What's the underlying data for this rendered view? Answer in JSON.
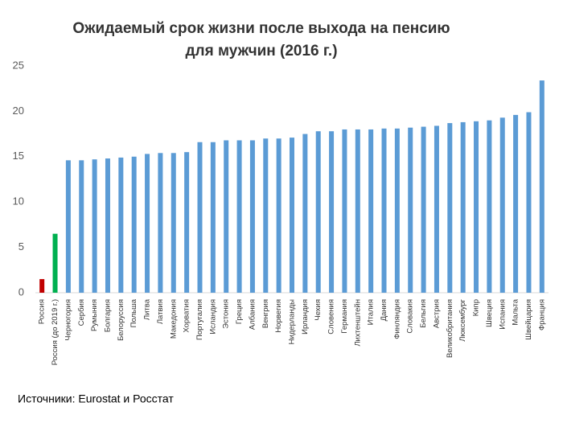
{
  "chart_data": {
    "type": "bar",
    "title": [
      "Ожидаемый срок жизни после выхода на пенсию",
      "для мужчин (2016 г.)"
    ],
    "source": "Источники: Eurostat и Росстат",
    "categories": [
      "Россия",
      "Россия (до 2019 г.)",
      "Черногория",
      "Сербия",
      "Румыния",
      "Болгария",
      "Белоруссия",
      "Польша",
      "Литва",
      "Латвия",
      "Македония",
      "Хорватия",
      "Португалия",
      "Исландия",
      "Эстония",
      "Греция",
      "Албания",
      "Венгрия",
      "Норвегия",
      "Нидерланды",
      "Ирландия",
      "Чехия",
      "Словения",
      "Германия",
      "Лихтенштейн",
      "Италия",
      "Дания",
      "Финляндия",
      "Словакия",
      "Бельгия",
      "Австрия",
      "Великобритания",
      "Люксембург",
      "Кипр",
      "Швеция",
      "Испания",
      "Мальта",
      "Швейцария",
      "Франция"
    ],
    "values": [
      1.5,
      6.5,
      14.6,
      14.6,
      14.7,
      14.8,
      14.9,
      15.0,
      15.3,
      15.4,
      15.4,
      15.5,
      16.6,
      16.6,
      16.8,
      16.8,
      16.8,
      17.0,
      17.0,
      17.1,
      17.5,
      17.8,
      17.8,
      18.0,
      18.0,
      18.0,
      18.1,
      18.1,
      18.2,
      18.3,
      18.4,
      18.7,
      18.8,
      18.9,
      19.0,
      19.3,
      19.6,
      19.9,
      23.4
    ],
    "colors": [
      "#c00000",
      "#00b050",
      "#5b9bd5",
      "#5b9bd5",
      "#5b9bd5",
      "#5b9bd5",
      "#5b9bd5",
      "#5b9bd5",
      "#5b9bd5",
      "#5b9bd5",
      "#5b9bd5",
      "#5b9bd5",
      "#5b9bd5",
      "#5b9bd5",
      "#5b9bd5",
      "#5b9bd5",
      "#5b9bd5",
      "#5b9bd5",
      "#5b9bd5",
      "#5b9bd5",
      "#5b9bd5",
      "#5b9bd5",
      "#5b9bd5",
      "#5b9bd5",
      "#5b9bd5",
      "#5b9bd5",
      "#5b9bd5",
      "#5b9bd5",
      "#5b9bd5",
      "#5b9bd5",
      "#5b9bd5",
      "#5b9bd5",
      "#5b9bd5",
      "#5b9bd5",
      "#5b9bd5",
      "#5b9bd5",
      "#5b9bd5",
      "#5b9bd5",
      "#5b9bd5"
    ],
    "ylim": [
      0,
      25
    ],
    "yticks": [
      0,
      5,
      10,
      15,
      20,
      25
    ],
    "grid": false
  }
}
